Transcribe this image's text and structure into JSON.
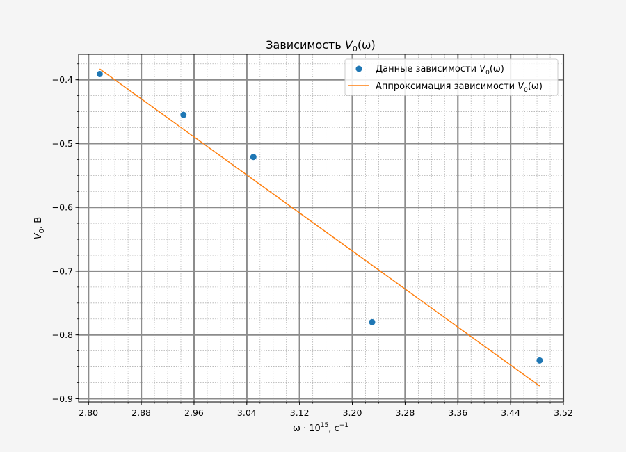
{
  "chart_data": {
    "type": "scatter",
    "title": {
      "text": "Зависимость ",
      "var": "V",
      "sub": "0",
      "arg": "(ω)"
    },
    "xlabel": {
      "text": "ω · 10",
      "sup": "15",
      "unit": ", c",
      "unit_sup": "−1"
    },
    "ylabel": {
      "var": "V",
      "sub": "0",
      "unit": ", В"
    },
    "xlim": [
      2.785,
      3.52
    ],
    "ylim": [
      -0.905,
      -0.36
    ],
    "xticks": [
      2.8,
      2.88,
      2.96,
      3.04,
      3.12,
      3.2,
      3.28,
      3.36,
      3.44,
      3.52
    ],
    "xtick_labels": [
      "2.80",
      "2.88",
      "2.96",
      "3.04",
      "3.12",
      "3.20",
      "3.28",
      "3.36",
      "3.44",
      "3.52"
    ],
    "yticks": [
      -0.4,
      -0.5,
      -0.6,
      -0.7,
      -0.8,
      -0.9
    ],
    "ytick_labels": [
      "−0.4",
      "−0.5",
      "−0.6",
      "−0.7",
      "−0.8",
      "−0.9"
    ],
    "grid": {
      "major": true,
      "minor": true,
      "minor_per_major": 4
    },
    "legend_position": "top-right",
    "series": [
      {
        "kind": "scatter",
        "name": {
          "text": "Данные зависимости ",
          "var": "V",
          "sub": "0",
          "arg": "(ω)"
        },
        "color": "#1f77b4",
        "x": [
          2.817,
          2.944,
          3.05,
          3.23,
          3.484
        ],
        "y": [
          -0.391,
          -0.455,
          -0.521,
          -0.78,
          -0.84
        ]
      },
      {
        "kind": "line",
        "name": {
          "text": "Аппроксимация зависимости ",
          "var": "V",
          "sub": "0",
          "arg": "(ω)"
        },
        "color": "#ff7f0e",
        "x": [
          2.817,
          3.484
        ],
        "y": [
          -0.383,
          -0.88
        ]
      }
    ]
  }
}
